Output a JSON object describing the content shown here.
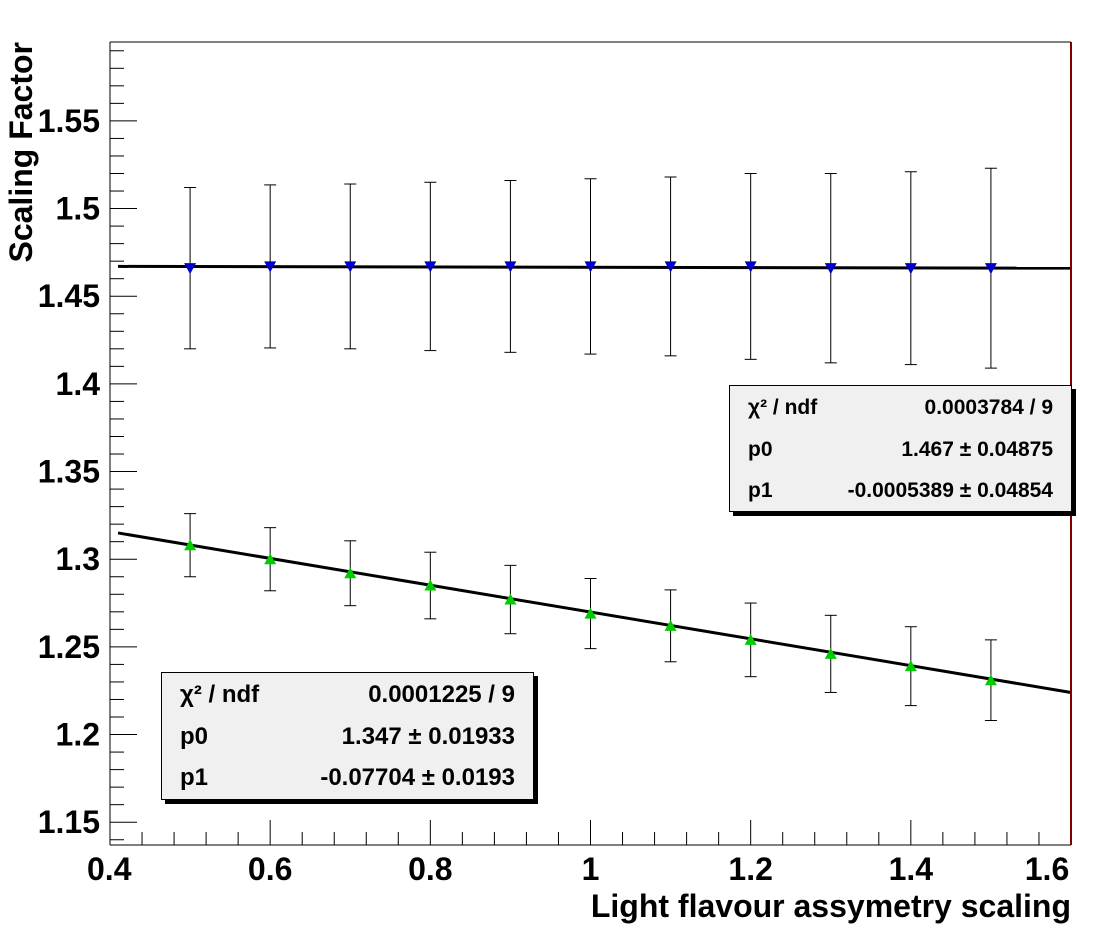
{
  "chart_data": {
    "type": "scatter",
    "xlabel": "Light flavour assymetry scaling",
    "ylabel": "Scaling Factor",
    "xlim": [
      0.4,
      1.6
    ],
    "ylim": [
      1.137,
      1.595
    ],
    "x_ticks": [
      "0.4",
      "0.6",
      "0.8",
      "1",
      "1.2",
      "1.4",
      "1.6"
    ],
    "y_ticks": [
      "1.15",
      "1.2",
      "1.25",
      "1.3",
      "1.35",
      "1.4",
      "1.45",
      "1.5",
      "1.55"
    ],
    "grid": false,
    "series": [
      {
        "marker": "triangle-down",
        "color": "#0000cc",
        "x": [
          0.5,
          0.6,
          0.7,
          0.8,
          0.9,
          1.0,
          1.1,
          1.2,
          1.3,
          1.4,
          1.5
        ],
        "y": [
          1.466,
          1.467,
          1.467,
          1.467,
          1.467,
          1.467,
          1.467,
          1.467,
          1.466,
          1.466,
          1.466
        ],
        "err": [
          0.046,
          0.0465,
          0.047,
          0.048,
          0.049,
          0.05,
          0.051,
          0.053,
          0.054,
          0.055,
          0.057
        ],
        "fit": {
          "line_x": [
            0.41,
            1.6
          ],
          "line_y": [
            1.467,
            1.466
          ],
          "stats": [
            {
              "name": "χ² / ndf",
              "value": "0.0003784 / 9"
            },
            {
              "name": "p0",
              "value": "1.467 ± 0.04875"
            },
            {
              "name": "p1",
              "value": "-0.0005389 ± 0.04854"
            }
          ]
        }
      },
      {
        "marker": "triangle-up",
        "color": "#00cc00",
        "x": [
          0.5,
          0.6,
          0.7,
          0.8,
          0.9,
          1.0,
          1.1,
          1.2,
          1.3,
          1.4,
          1.5
        ],
        "y": [
          1.308,
          1.3,
          1.292,
          1.285,
          1.277,
          1.269,
          1.262,
          1.254,
          1.246,
          1.239,
          1.231
        ],
        "err": [
          0.018,
          0.018,
          0.0185,
          0.019,
          0.0195,
          0.02,
          0.0205,
          0.021,
          0.022,
          0.0225,
          0.023
        ],
        "fit": {
          "line_x": [
            0.41,
            1.6
          ],
          "line_y": [
            1.315,
            1.224
          ],
          "stats": [
            {
              "name": "χ² / ndf",
              "value": "0.0001225 / 9"
            },
            {
              "name": "p0",
              "value": "1.347 ± 0.01933"
            },
            {
              "name": "p1",
              "value": "-0.07704 ± 0.0193"
            }
          ]
        }
      }
    ]
  },
  "colors": {
    "frame_right": "#800000",
    "stat_box_bg": "#f0f0f0"
  }
}
